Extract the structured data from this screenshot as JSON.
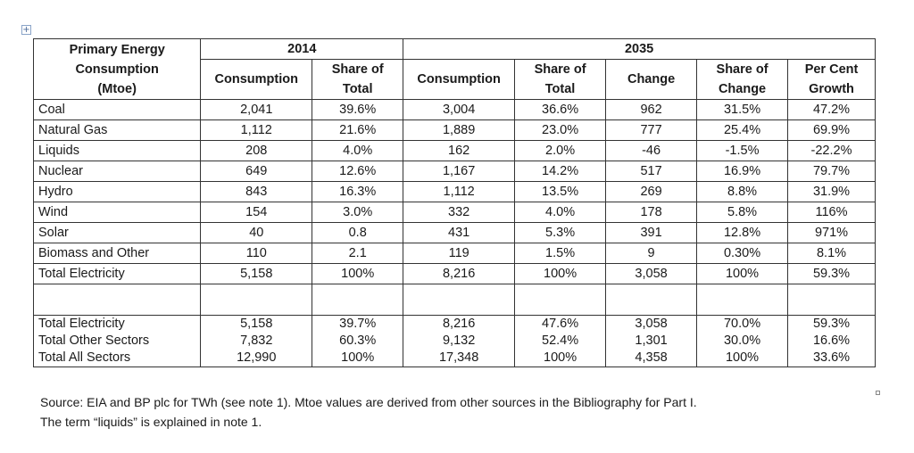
{
  "table": {
    "header": {
      "category": [
        "Primary Energy",
        "Consumption",
        "(Mtoe)"
      ],
      "year_2014": "2014",
      "year_2035": "2035",
      "consumption": "Consumption",
      "share_total": [
        "Share of",
        "Total"
      ],
      "change": "Change",
      "share_change": [
        "Share of",
        "Change"
      ],
      "growth": [
        "Per Cent",
        "Growth"
      ]
    },
    "rows": [
      {
        "name": "Coal",
        "c2014": "2,041",
        "s2014": "39.6%",
        "c2035": "3,004",
        "s2035": "36.6%",
        "change": "962",
        "share_change": "31.5%",
        "growth": "47.2%"
      },
      {
        "name": "Natural Gas",
        "c2014": "1,112",
        "s2014": "21.6%",
        "c2035": "1,889",
        "s2035": "23.0%",
        "change": "777",
        "share_change": "25.4%",
        "growth": "69.9%"
      },
      {
        "name": "Liquids",
        "c2014": "208",
        "s2014": "4.0%",
        "c2035": "162",
        "s2035": "2.0%",
        "change": "-46",
        "share_change": "-1.5%",
        "growth": "-22.2%"
      },
      {
        "name": "Nuclear",
        "c2014": "649",
        "s2014": "12.6%",
        "c2035": "1,167",
        "s2035": "14.2%",
        "change": "517",
        "share_change": "16.9%",
        "growth": "79.7%"
      },
      {
        "name": "Hydro",
        "c2014": "843",
        "s2014": "16.3%",
        "c2035": "1,112",
        "s2035": "13.5%",
        "change": "269",
        "share_change": "8.8%",
        "growth": "31.9%"
      },
      {
        "name": "Wind",
        "c2014": "154",
        "s2014": "3.0%",
        "c2035": "332",
        "s2035": "4.0%",
        "change": "178",
        "share_change": "5.8%",
        "growth": "116%"
      },
      {
        "name": "Solar",
        "c2014": "40",
        "s2014": "0.8",
        "c2035": "431",
        "s2035": "5.3%",
        "change": "391",
        "share_change": "12.8%",
        "growth": "971%"
      },
      {
        "name": "Biomass and Other",
        "c2014": "110",
        "s2014": "2.1",
        "c2035": "119",
        "s2035": "1.5%",
        "change": "9",
        "share_change": "0.30%",
        "growth": "8.1%"
      },
      {
        "name": "Total Electricity",
        "c2014": "5,158",
        "s2014": "100%",
        "c2035": "8,216",
        "s2035": "100%",
        "change": "3,058",
        "share_change": "100%",
        "growth": "59.3%"
      }
    ],
    "summary": {
      "names": [
        "Total Electricity",
        "Total Other Sectors",
        "Total All Sectors"
      ],
      "c2014": [
        "5,158",
        "7,832",
        "12,990"
      ],
      "s2014": [
        "39.7%",
        "60.3%",
        "100%"
      ],
      "c2035": [
        "8,216",
        "9,132",
        "17,348"
      ],
      "s2035": [
        "47.6%",
        "52.4%",
        "100%"
      ],
      "change": [
        "3,058",
        "1,301",
        "4,358"
      ],
      "share_change": [
        "70.0%",
        "30.0%",
        "100%"
      ],
      "growth": [
        "59.3%",
        "16.6%",
        "33.6%"
      ]
    }
  },
  "source": {
    "line1": "Source: EIA and BP plc for TWh (see note 1). Mtoe values are derived from other sources in the Bibliography for Part I.",
    "line2": "The term “liquids” is explained in note 1."
  }
}
